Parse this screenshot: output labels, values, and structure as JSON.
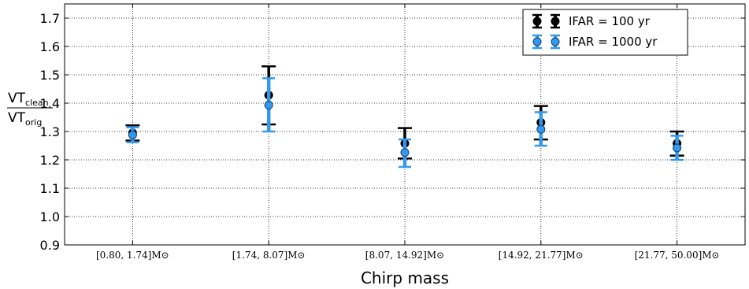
{
  "chart_data": {
    "type": "scatter",
    "title": "",
    "xlabel": "Chirp mass",
    "ylabel": {
      "numerator": "VT",
      "numerator_sub": "clean",
      "denominator": "VT",
      "denominator_sub": "orig"
    },
    "categories": [
      "[0.80, 1.74]M⊙",
      "[1.74, 8.07]M⊙",
      "[8.07, 14.92]M⊙",
      "[14.92, 21.77]M⊙",
      "[21.77, 50.00]M⊙"
    ],
    "ylim": [
      0.9,
      1.75
    ],
    "yticks": [
      "0.9",
      "1.0",
      "1.1",
      "1.2",
      "1.3",
      "1.4",
      "1.5",
      "1.6",
      "1.7"
    ],
    "grid": true,
    "legend_position": "top-right",
    "series": [
      {
        "name": "IFAR = 100 yr",
        "color": "#000000",
        "values": [
          1.295,
          1.428,
          1.258,
          1.332,
          1.258
        ],
        "err_low": [
          1.268,
          1.325,
          1.205,
          1.272,
          1.215
        ],
        "err_high": [
          1.322,
          1.53,
          1.312,
          1.39,
          1.3
        ]
      },
      {
        "name": "IFAR = 1000 yr",
        "color": "#3399ee",
        "values": [
          1.288,
          1.393,
          1.226,
          1.308,
          1.242
        ],
        "err_low": [
          1.262,
          1.3,
          1.175,
          1.25,
          1.2
        ],
        "err_high": [
          1.315,
          1.488,
          1.272,
          1.368,
          1.285
        ]
      }
    ]
  }
}
